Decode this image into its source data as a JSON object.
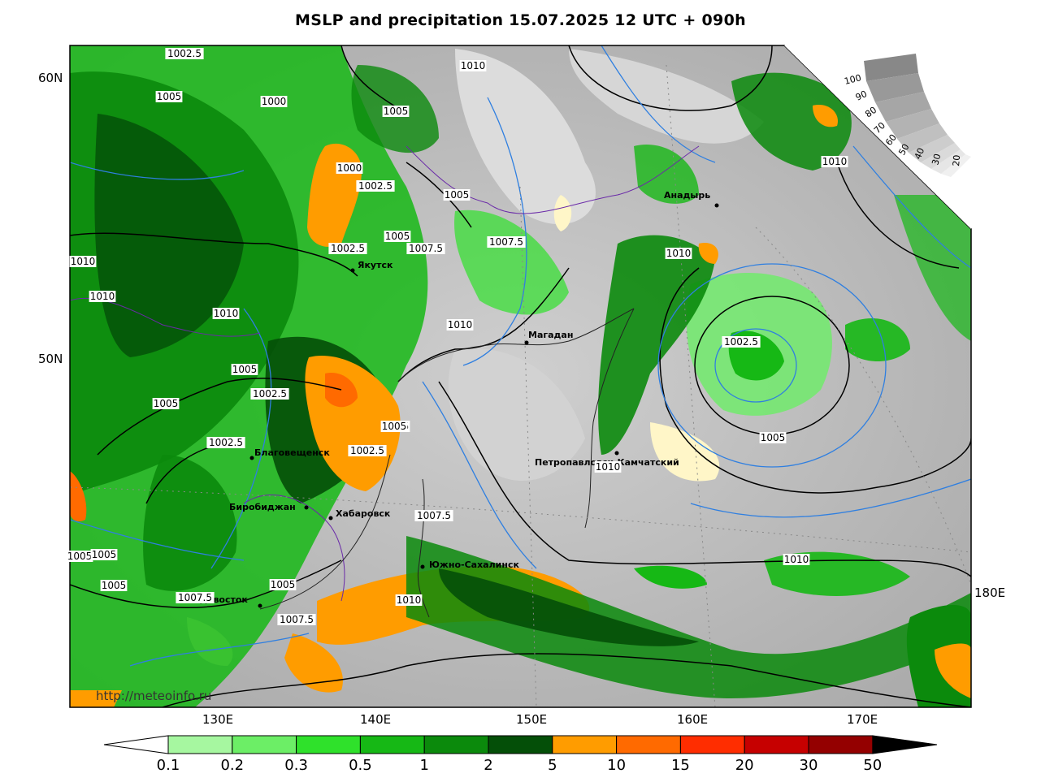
{
  "title": "MSLP and precipitation 15.07.2025 12 UTC + 090h",
  "watermark": "http://meteoinfo.ru",
  "lat_labels": [
    "60N",
    "50N"
  ],
  "lon_labels": [
    "130E",
    "140E",
    "150E",
    "160E",
    "170E",
    "180E"
  ],
  "colors": {
    "p01": "#a6f7a0",
    "p02": "#6cee66",
    "p03": "#2fe12b",
    "p05": "#16b815",
    "p1": "#0b8a0c",
    "p2": "#044f08",
    "p5": "#ff9c00",
    "p10": "#ff6a00",
    "p15": "#ff2d00",
    "p20": "#c60000",
    "p30": "#940000",
    "p50": "#000000",
    "isobar_black": "#000000",
    "isobar_blue": "#2f7fe0",
    "border": "#6a2aa8",
    "gray_field": "#b8b8b8"
  },
  "colorbar": {
    "labels": [
      "0.1",
      "0.2",
      "0.3",
      "0.5",
      "1",
      "2",
      "5",
      "10",
      "15",
      "20",
      "30",
      "50"
    ]
  },
  "scale_inset": {
    "labels": [
      "100",
      "90",
      "80",
      "70",
      "60",
      "50",
      "40",
      "30",
      "20"
    ]
  },
  "cities": [
    "Якутск",
    "Магадан",
    "Анадырь",
    "Петропавловск-Камчатский",
    "Благовещенск",
    "Биробиджан",
    "Хабаровск",
    "Южно-Сахалинск",
    "Владивосток"
  ],
  "isobar_labels": [
    "1002.5",
    "1005",
    "1000",
    "1010",
    "1005",
    "1000",
    "1002.5",
    "1005",
    "1002.5",
    "1005",
    "1007.5",
    "1007.5",
    "1010",
    "1010",
    "1010",
    "1010",
    "1010",
    "1010",
    "1002.5",
    "1005",
    "1005",
    "1002.5",
    "1005",
    "1002.5",
    "1002.5",
    "1005",
    "1007.5",
    "1010",
    "1005",
    "1005",
    "1005",
    "1007.5",
    "1005",
    "1007.5",
    "1010",
    "1010",
    "1005",
    "1010"
  ]
}
